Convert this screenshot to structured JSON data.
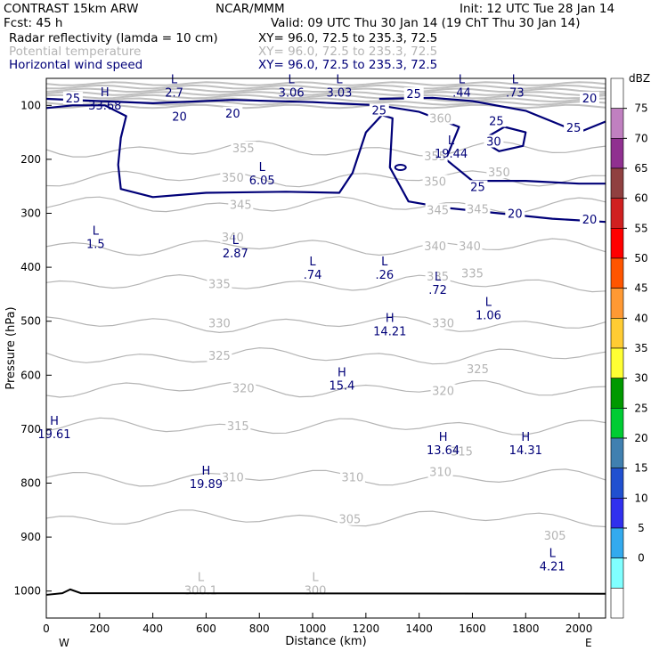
{
  "header": {
    "title": "CONTRAST 15km ARW",
    "fcst": "Fcst:    45 h",
    "org": "NCAR/MMM",
    "init": "Init: 12 UTC Tue 28 Jan 14",
    "valid": "Valid: 09 UTC Thu 30 Jan 14 (19 ChT Thu 30 Jan 14)"
  },
  "fields": [
    {
      "name": "Radar reflectivity (lamda = 10 cm)",
      "xy": "XY=  96.0, 72.5 to 235.3, 72.5",
      "color": "#000000"
    },
    {
      "name": "Potential temperature",
      "xy": "XY=  96.0, 72.5 to 235.3, 72.5",
      "color": "#b4b4b4"
    },
    {
      "name": "Horizontal wind speed",
      "xy": "XY=  96.0, 72.5 to 235.3, 72.5",
      "color": "#000078"
    }
  ],
  "chart_data": {
    "type": "cross-section contour",
    "xlabel": "Distance (km)",
    "ylabel": "Pressure (hPa)",
    "xlim": [
      0,
      2100
    ],
    "ylim": [
      1050,
      50
    ],
    "x_ticks": [
      0,
      200,
      400,
      600,
      800,
      1000,
      1200,
      1400,
      1600,
      1800,
      2000
    ],
    "y_ticks": [
      100,
      200,
      300,
      400,
      500,
      600,
      700,
      800,
      900,
      1000
    ],
    "x_end_labels": {
      "left": "W",
      "right": "E"
    },
    "colorbar": {
      "unit": "dBZ",
      "levels": [
        75,
        70,
        65,
        60,
        55,
        50,
        45,
        40,
        35,
        30,
        25,
        20,
        15,
        10,
        5,
        0
      ],
      "colors": [
        "#ffffff",
        "#c080c0",
        "#903090",
        "#904040",
        "#d02020",
        "#ff0000",
        "#ff5500",
        "#ff9933",
        "#ffcc33",
        "#ffff33",
        "#009900",
        "#00cc33",
        "#4080b0",
        "#2050d0",
        "#3030ee",
        "#33aaee",
        "#80ffff",
        "#ffffff"
      ]
    },
    "theta_contours": [
      {
        "level": 355,
        "label_x": 1000,
        "label_p": 182
      },
      {
        "level": 350,
        "label_x": 700,
        "label_p": 235
      },
      {
        "level": 345,
        "label_x": 730,
        "label_p": 285
      },
      {
        "level": 340,
        "label_x": 1480,
        "label_p": 362
      },
      {
        "level": 335,
        "label_x": 650,
        "label_p": 430
      },
      {
        "level": 330,
        "label_x": 650,
        "label_p": 505
      },
      {
        "level": 325,
        "label_x": 650,
        "label_p": 565
      },
      {
        "level": 320,
        "label_x": 740,
        "label_p": 625
      },
      {
        "level": 315,
        "label_x": 700,
        "label_p": 695
      },
      {
        "level": 310,
        "label_x": 680,
        "label_p": 790
      },
      {
        "level": 305,
        "label_x": 680,
        "label_p": 865
      }
    ],
    "theta_labels": [
      {
        "text": "355",
        "x": 740,
        "p": 180
      },
      {
        "text": "350",
        "x": 700,
        "p": 235
      },
      {
        "text": "345",
        "x": 730,
        "p": 285
      },
      {
        "text": "345",
        "x": 1470,
        "p": 295
      },
      {
        "text": "345",
        "x": 1620,
        "p": 293
      },
      {
        "text": "340",
        "x": 700,
        "p": 345
      },
      {
        "text": "340",
        "x": 1460,
        "p": 362
      },
      {
        "text": "340",
        "x": 1590,
        "p": 362
      },
      {
        "text": "335",
        "x": 650,
        "p": 432
      },
      {
        "text": "335",
        "x": 1470,
        "p": 418
      },
      {
        "text": "335",
        "x": 1600,
        "p": 412
      },
      {
        "text": "330",
        "x": 650,
        "p": 505
      },
      {
        "text": "330",
        "x": 1490,
        "p": 505
      },
      {
        "text": "325",
        "x": 650,
        "p": 565
      },
      {
        "text": "325",
        "x": 1620,
        "p": 590
      },
      {
        "text": "320",
        "x": 740,
        "p": 625
      },
      {
        "text": "320",
        "x": 1490,
        "p": 630
      },
      {
        "text": "315",
        "x": 720,
        "p": 695
      },
      {
        "text": "315",
        "x": 1560,
        "p": 742
      },
      {
        "text": "310",
        "x": 700,
        "p": 790
      },
      {
        "text": "310",
        "x": 1150,
        "p": 790
      },
      {
        "text": "310",
        "x": 1480,
        "p": 780
      },
      {
        "text": "305",
        "x": 1140,
        "p": 868
      },
      {
        "text": "305",
        "x": 1910,
        "p": 898
      },
      {
        "text": "360",
        "x": 1480,
        "p": 125
      },
      {
        "text": "350",
        "x": 1460,
        "p": 242
      },
      {
        "text": "355",
        "x": 1460,
        "p": 195
      },
      {
        "text": "350",
        "x": 1700,
        "p": 225
      }
    ],
    "wind_labels": [
      {
        "text": "25",
        "x": 100,
        "p": 88
      },
      {
        "text": "20",
        "x": 500,
        "p": 122
      },
      {
        "text": "20",
        "x": 700,
        "p": 116
      },
      {
        "text": "25",
        "x": 1250,
        "p": 110
      },
      {
        "text": "25",
        "x": 1380,
        "p": 80
      },
      {
        "text": "25",
        "x": 1690,
        "p": 130
      },
      {
        "text": "25",
        "x": 1980,
        "p": 142
      },
      {
        "text": "20",
        "x": 2040,
        "p": 88
      },
      {
        "text": "30",
        "x": 1680,
        "p": 168
      },
      {
        "text": "25",
        "x": 1620,
        "p": 252
      },
      {
        "text": "20",
        "x": 1760,
        "p": 302
      },
      {
        "text": "20",
        "x": 2040,
        "p": 312
      }
    ],
    "extrema": [
      {
        "type": "H",
        "value": "33.68",
        "x": 220,
        "p": 86,
        "color": "#000078"
      },
      {
        "type": "L",
        "value": "2.7",
        "x": 480,
        "p": 62,
        "color": "#000078"
      },
      {
        "type": "L",
        "value": "3.06",
        "x": 920,
        "p": 62,
        "color": "#000078"
      },
      {
        "type": "L",
        "value": "3.03",
        "x": 1100,
        "p": 62,
        "color": "#000078"
      },
      {
        "type": "L",
        "value": ".44",
        "x": 1560,
        "p": 62,
        "color": "#000078"
      },
      {
        "type": "L",
        "value": ".73",
        "x": 1760,
        "p": 62,
        "color": "#000078"
      },
      {
        "type": "L",
        "value": "19.44",
        "x": 1520,
        "p": 175,
        "color": "#000078"
      },
      {
        "type": "L",
        "value": "6.05",
        "x": 810,
        "p": 225,
        "color": "#000078"
      },
      {
        "type": "L",
        "value": "1.5",
        "x": 185,
        "p": 343,
        "color": "#000078"
      },
      {
        "type": "L",
        "value": "2.87",
        "x": 710,
        "p": 360,
        "color": "#000078"
      },
      {
        "type": "L",
        "value": ".74",
        "x": 1000,
        "p": 400,
        "color": "#000078"
      },
      {
        "type": "L",
        "value": ".26",
        "x": 1270,
        "p": 400,
        "color": "#000078"
      },
      {
        "type": "L",
        "value": ".72",
        "x": 1470,
        "p": 428,
        "color": "#000078"
      },
      {
        "type": "L",
        "value": "1.06",
        "x": 1660,
        "p": 475,
        "color": "#000078"
      },
      {
        "type": "H",
        "value": "14.21",
        "x": 1290,
        "p": 505,
        "color": "#000078"
      },
      {
        "type": "H",
        "value": "15.4",
        "x": 1110,
        "p": 605,
        "color": "#000078"
      },
      {
        "type": "H",
        "value": "19.61",
        "x": 30,
        "p": 695,
        "color": "#000078"
      },
      {
        "type": "H",
        "value": "13.64",
        "x": 1490,
        "p": 725,
        "color": "#000078"
      },
      {
        "type": "H",
        "value": "14.31",
        "x": 1800,
        "p": 725,
        "color": "#000078"
      },
      {
        "type": "H",
        "value": "19.89",
        "x": 600,
        "p": 788,
        "color": "#000078"
      },
      {
        "type": "L",
        "value": "4.21",
        "x": 1900,
        "p": 940,
        "color": "#000078"
      },
      {
        "type": "L",
        "value": "300.1",
        "x": 580,
        "p": 985,
        "color": "#b4b4b4"
      },
      {
        "type": "L",
        "value": "300",
        "x": 1010,
        "p": 985,
        "color": "#b4b4b4"
      }
    ],
    "terrain_p": 1005
  }
}
